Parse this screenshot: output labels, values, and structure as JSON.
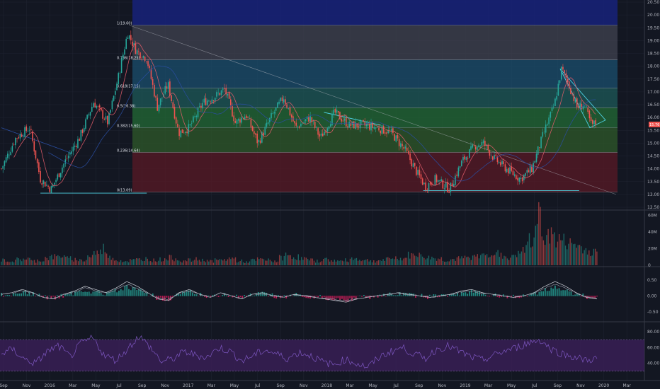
{
  "colors": {
    "background": "#131722",
    "grid": "#1f2330",
    "up": "#26a69a",
    "down": "#ef5350",
    "pivot": "#4dd0e1",
    "fib_band_0": "#5a1a25",
    "fib_band_0236": "#2f5a2a",
    "fib_band_0382": "#236b36",
    "fib_band_05": "#1d5a58",
    "fib_band_0618": "#1b4f6e",
    "fib_band_0786": "#404350",
    "fib_band_top": "#17227a",
    "macd_line": "#d1d4dc",
    "signal_line": "#8a8f9c",
    "hist_neg": "#e91e63",
    "rsi_band": "#3b1f59",
    "rsi_line": "#7e57c2"
  },
  "x_axis": {
    "labels": [
      "Sep",
      "Nov",
      "2016",
      "Mar",
      "May",
      "Jul",
      "Sep",
      "Nov",
      "2017",
      "Mar",
      "May",
      "Jul",
      "Sep",
      "Nov",
      "2018",
      "Mar",
      "May",
      "Jul",
      "Sep",
      "Nov",
      "2019",
      "Mar",
      "May",
      "Jul",
      "Sep",
      "Nov",
      "2020",
      "Mar"
    ]
  },
  "price_axis": {
    "labels": [
      "20.50",
      "20.00",
      "19.50",
      "19.00",
      "18.50",
      "18.00",
      "17.50",
      "17.00",
      "16.50",
      "16.00",
      "15.50",
      "15.00",
      "14.50",
      "14.00",
      "13.50",
      "13.00",
      "12.50"
    ],
    "last_price": "15.76"
  },
  "volume_axis": {
    "labels": [
      "60M",
      "40M",
      "20M",
      "0"
    ]
  },
  "macd_axis": {
    "labels": [
      "0.50",
      "0.00",
      "-0.50"
    ]
  },
  "rsi_axis": {
    "labels": [
      "80.00",
      "60.00",
      "40.00"
    ]
  },
  "fib_levels": [
    {
      "level": "1",
      "price": 19.6,
      "label": "1(19.60)"
    },
    {
      "level": "0.786",
      "price": 18.25,
      "label": "0.786(18.25)"
    },
    {
      "level": "0.618",
      "price": 17.15,
      "label": "0.618(17.15)"
    },
    {
      "level": "0.5",
      "price": 16.38,
      "label": "0.5(16.38)"
    },
    {
      "level": "0.382",
      "price": 15.6,
      "label": "0.382(15.60)"
    },
    {
      "level": "0.236",
      "price": 14.64,
      "label": "0.236(14.64)"
    },
    {
      "level": "0",
      "price": 13.09,
      "label": "0(13.09)"
    }
  ],
  "chart_data": {
    "type": "candlestick",
    "title": "",
    "ylim": [
      12.5,
      20.5
    ],
    "y_ticks": [
      20.5,
      20,
      19.5,
      19,
      18.5,
      18,
      17.5,
      17,
      16.5,
      16,
      15.5,
      15,
      14.5,
      14,
      13.5,
      13,
      12.5
    ],
    "price_path": [
      {
        "t": 0,
        "p": 14.0
      },
      {
        "t": 20,
        "p": 15.2
      },
      {
        "t": 40,
        "p": 15.6
      },
      {
        "t": 55,
        "p": 13.6
      },
      {
        "t": 70,
        "p": 13.2
      },
      {
        "t": 90,
        "p": 14.3
      },
      {
        "t": 110,
        "p": 15.2
      },
      {
        "t": 130,
        "p": 16.6
      },
      {
        "t": 150,
        "p": 15.8
      },
      {
        "t": 165,
        "p": 17.6
      },
      {
        "t": 178,
        "p": 19.3
      },
      {
        "t": 190,
        "p": 18.6
      },
      {
        "t": 205,
        "p": 18.3
      },
      {
        "t": 220,
        "p": 16.4
      },
      {
        "t": 235,
        "p": 17.3
      },
      {
        "t": 250,
        "p": 15.4
      },
      {
        "t": 265,
        "p": 15.6
      },
      {
        "t": 285,
        "p": 16.6
      },
      {
        "t": 300,
        "p": 16.8
      },
      {
        "t": 315,
        "p": 17.1
      },
      {
        "t": 330,
        "p": 15.8
      },
      {
        "t": 345,
        "p": 16.1
      },
      {
        "t": 362,
        "p": 15.0
      },
      {
        "t": 380,
        "p": 16.0
      },
      {
        "t": 398,
        "p": 16.8
      },
      {
        "t": 415,
        "p": 15.6
      },
      {
        "t": 435,
        "p": 16.0
      },
      {
        "t": 450,
        "p": 15.2
      },
      {
        "t": 470,
        "p": 16.2
      },
      {
        "t": 490,
        "p": 15.7
      },
      {
        "t": 510,
        "p": 15.7
      },
      {
        "t": 530,
        "p": 15.6
      },
      {
        "t": 550,
        "p": 15.4
      },
      {
        "t": 570,
        "p": 14.7
      },
      {
        "t": 585,
        "p": 13.9
      },
      {
        "t": 598,
        "p": 13.3
      },
      {
        "t": 612,
        "p": 13.6
      },
      {
        "t": 632,
        "p": 13.2
      },
      {
        "t": 650,
        "p": 14.3
      },
      {
        "t": 668,
        "p": 14.9
      },
      {
        "t": 680,
        "p": 15.0
      },
      {
        "t": 695,
        "p": 14.4
      },
      {
        "t": 712,
        "p": 14.0
      },
      {
        "t": 732,
        "p": 13.6
      },
      {
        "t": 748,
        "p": 14.0
      },
      {
        "t": 765,
        "p": 15.4
      },
      {
        "t": 780,
        "p": 16.5
      },
      {
        "t": 790,
        "p": 17.9
      },
      {
        "t": 800,
        "p": 17.3
      },
      {
        "t": 812,
        "p": 16.4
      },
      {
        "t": 822,
        "p": 16.5
      },
      {
        "t": 832,
        "p": 15.7
      },
      {
        "t": 840,
        "p": 15.8
      }
    ],
    "volume_millions": [
      6,
      5,
      7,
      8,
      5,
      6,
      9,
      10,
      12,
      8,
      7,
      6,
      11,
      15,
      20,
      9,
      6,
      5,
      6,
      7,
      8,
      6,
      7,
      9,
      8,
      5,
      6,
      7,
      6,
      5,
      6,
      7,
      8,
      5,
      4,
      6,
      7,
      6,
      5,
      9,
      12,
      10,
      8,
      6,
      5,
      7,
      6,
      5,
      6,
      8,
      7,
      6,
      5,
      6,
      7,
      9,
      8,
      12,
      14,
      10,
      9,
      8,
      6,
      7,
      8,
      9,
      10,
      12,
      15,
      14,
      11,
      9,
      13,
      18,
      30,
      55,
      40,
      35,
      30,
      28,
      25,
      22,
      18,
      15
    ],
    "macd": [
      0.05,
      0.1,
      0.2,
      0.1,
      -0.05,
      -0.1,
      0.05,
      0.15,
      0.3,
      0.2,
      0.1,
      0.25,
      0.45,
      0.3,
      0.1,
      -0.1,
      -0.15,
      0.1,
      0.2,
      0.05,
      -0.05,
      0.1,
      0.0,
      -0.1,
      0.05,
      0.1,
      0.0,
      -0.05,
      0.05,
      0.0,
      -0.05,
      -0.1,
      -0.15,
      -0.2,
      -0.1,
      -0.05,
      0.0,
      0.05,
      0.1,
      0.05,
      0.0,
      -0.05,
      0.0,
      0.05,
      0.15,
      0.2,
      0.1,
      0.05,
      0.0,
      -0.05,
      0.0,
      0.1,
      0.3,
      0.45,
      0.3,
      0.1,
      -0.05,
      -0.1
    ],
    "rsi": [
      52,
      58,
      45,
      40,
      55,
      62,
      48,
      66,
      72,
      50,
      44,
      58,
      75,
      60,
      42,
      46,
      55,
      50,
      48,
      60,
      55,
      43,
      50,
      57,
      52,
      46,
      54,
      50,
      42,
      38,
      45,
      40,
      35,
      48,
      55,
      60,
      52,
      46,
      58,
      62,
      55,
      48,
      44,
      50,
      56,
      60,
      66,
      70,
      58,
      52,
      48,
      44,
      46
    ]
  }
}
